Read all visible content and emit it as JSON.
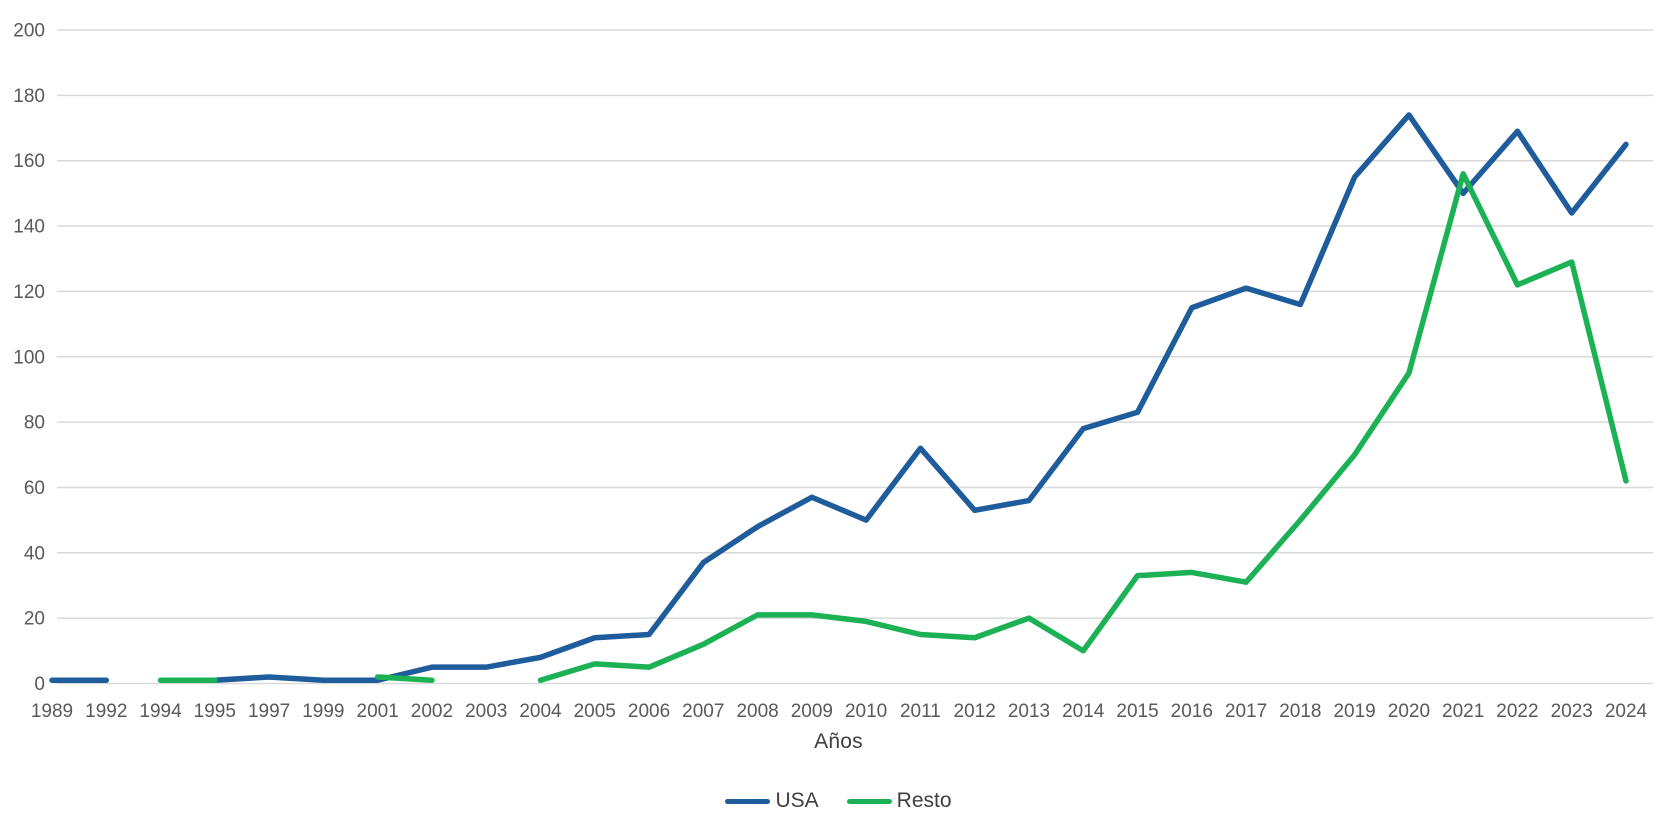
{
  "chart_data": {
    "type": "line",
    "title": "",
    "xlabel": "Años",
    "ylabel": "",
    "ylim": [
      0,
      200
    ],
    "y_ticks": [
      0,
      20,
      40,
      60,
      80,
      100,
      120,
      140,
      160,
      180,
      200
    ],
    "grid": true,
    "legend_position": "bottom-center",
    "background_color": "#ffffff",
    "grid_color": "#d9d9d9",
    "tick_label_color": "#595959",
    "axis_title_color": "#404040",
    "categories": [
      "1989",
      "1992",
      "1994",
      "1995",
      "1997",
      "1999",
      "2001",
      "2002",
      "2003",
      "2004",
      "2005",
      "2006",
      "2007",
      "2008",
      "2009",
      "2010",
      "2011",
      "2012",
      "2013",
      "2014",
      "2015",
      "2016",
      "2017",
      "2018",
      "2019",
      "2020",
      "2021",
      "2022",
      "2023",
      "2024"
    ],
    "series": [
      {
        "name": "USA",
        "color": "#1f5c9c",
        "values": [
          1,
          1,
          null,
          1,
          2,
          1,
          1,
          5,
          5,
          8,
          14,
          15,
          37,
          48,
          57,
          50,
          72,
          53,
          56,
          78,
          83,
          115,
          121,
          116,
          155,
          174,
          150,
          169,
          144,
          165
        ]
      },
      {
        "name": "Resto",
        "color": "#1db156",
        "values": [
          null,
          null,
          1,
          1,
          null,
          null,
          2,
          1,
          null,
          1,
          6,
          5,
          12,
          21,
          21,
          19,
          15,
          14,
          20,
          10,
          33,
          34,
          31,
          50,
          70,
          95,
          156,
          122,
          129,
          62
        ]
      }
    ]
  }
}
